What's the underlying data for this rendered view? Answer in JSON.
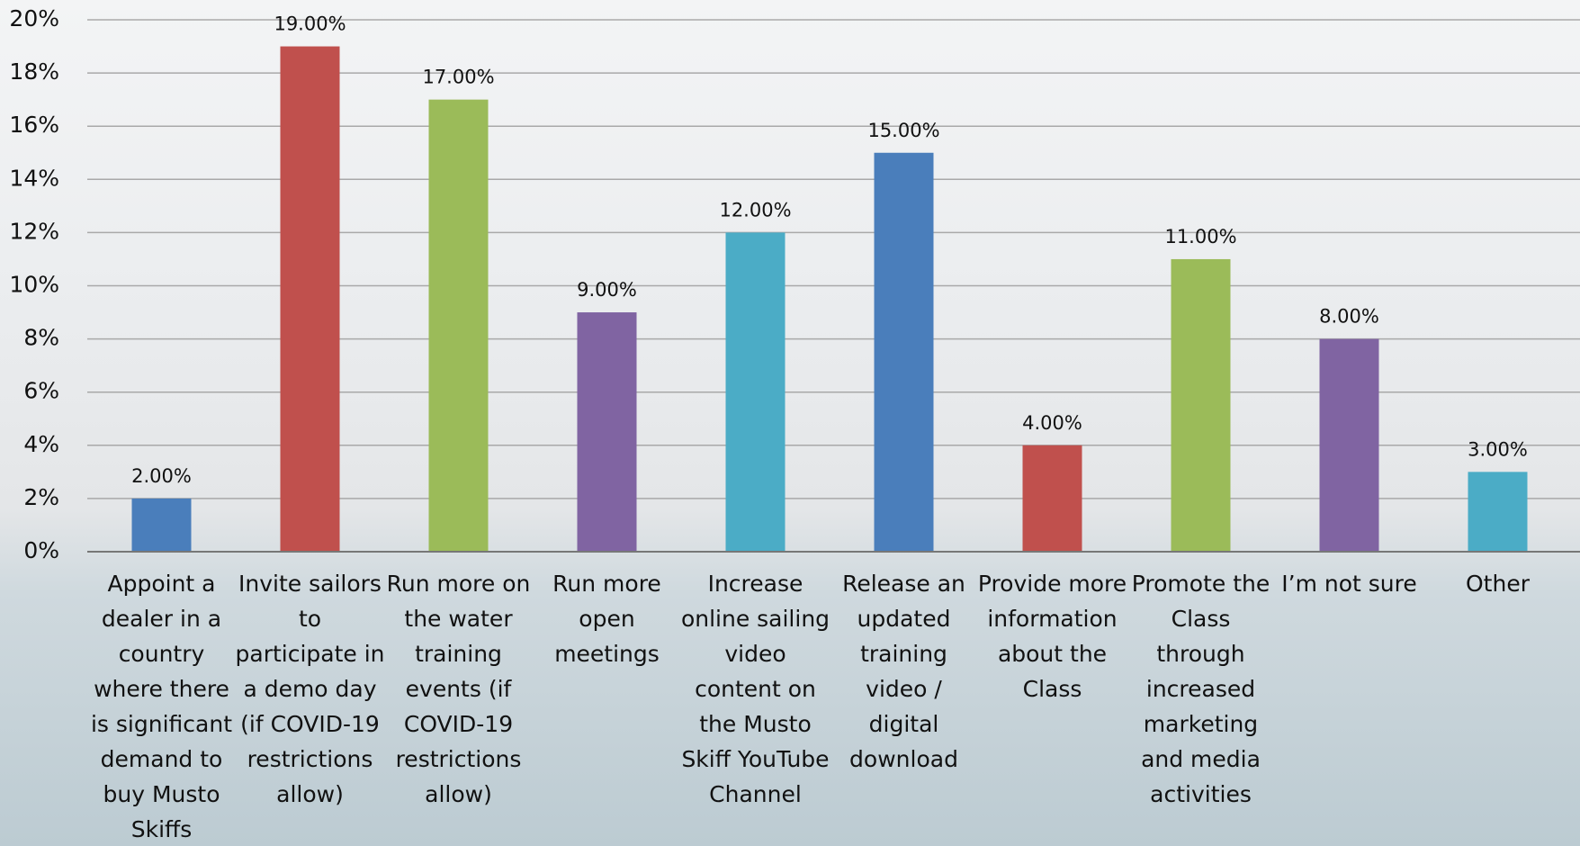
{
  "chart_data": {
    "type": "bar",
    "categories": [
      "Appoint a dealer in a country where there is significant demand to buy Musto Skiffs",
      "Invite sailors to participate in a demo day (if COVID-19 restrictions allow)",
      "Run more on the water training events (if COVID-19 restrictions allow)",
      "Run more open meetings",
      "Increase online sailing video content on the Musto Skiff YouTube Channel",
      "Release an updated training video / digital download",
      "Provide more information about the Class",
      "Promote the Class through increased marketing and media activities",
      "I’m not sure",
      "Other"
    ],
    "values": [
      2,
      19,
      17,
      9,
      12,
      15,
      4,
      11,
      8,
      3
    ],
    "value_labels": [
      "2.00%",
      "19.00%",
      "17.00%",
      "9.00%",
      "12.00%",
      "15.00%",
      "4.00%",
      "11.00%",
      "8.00%",
      "3.00%"
    ],
    "colors": [
      "#4a7ebb",
      "#c0504d",
      "#9bbb59",
      "#8064a2",
      "#4bacc6",
      "#4a7ebb",
      "#c0504d",
      "#9bbb59",
      "#8064a2",
      "#4bacc6"
    ],
    "ylim": [
      0,
      20
    ],
    "yticks": [
      {
        "value": 0,
        "label": "0%"
      },
      {
        "value": 2,
        "label": "2%"
      },
      {
        "value": 4,
        "label": "4%"
      },
      {
        "value": 6,
        "label": "6%"
      },
      {
        "value": 8,
        "label": "8%"
      },
      {
        "value": 10,
        "label": "10%"
      },
      {
        "value": 12,
        "label": "12%"
      },
      {
        "value": 14,
        "label": "14%"
      },
      {
        "value": 16,
        "label": "16%"
      },
      {
        "value": 18,
        "label": "18%"
      },
      {
        "value": 20,
        "label": "20%"
      }
    ],
    "grid": true
  }
}
